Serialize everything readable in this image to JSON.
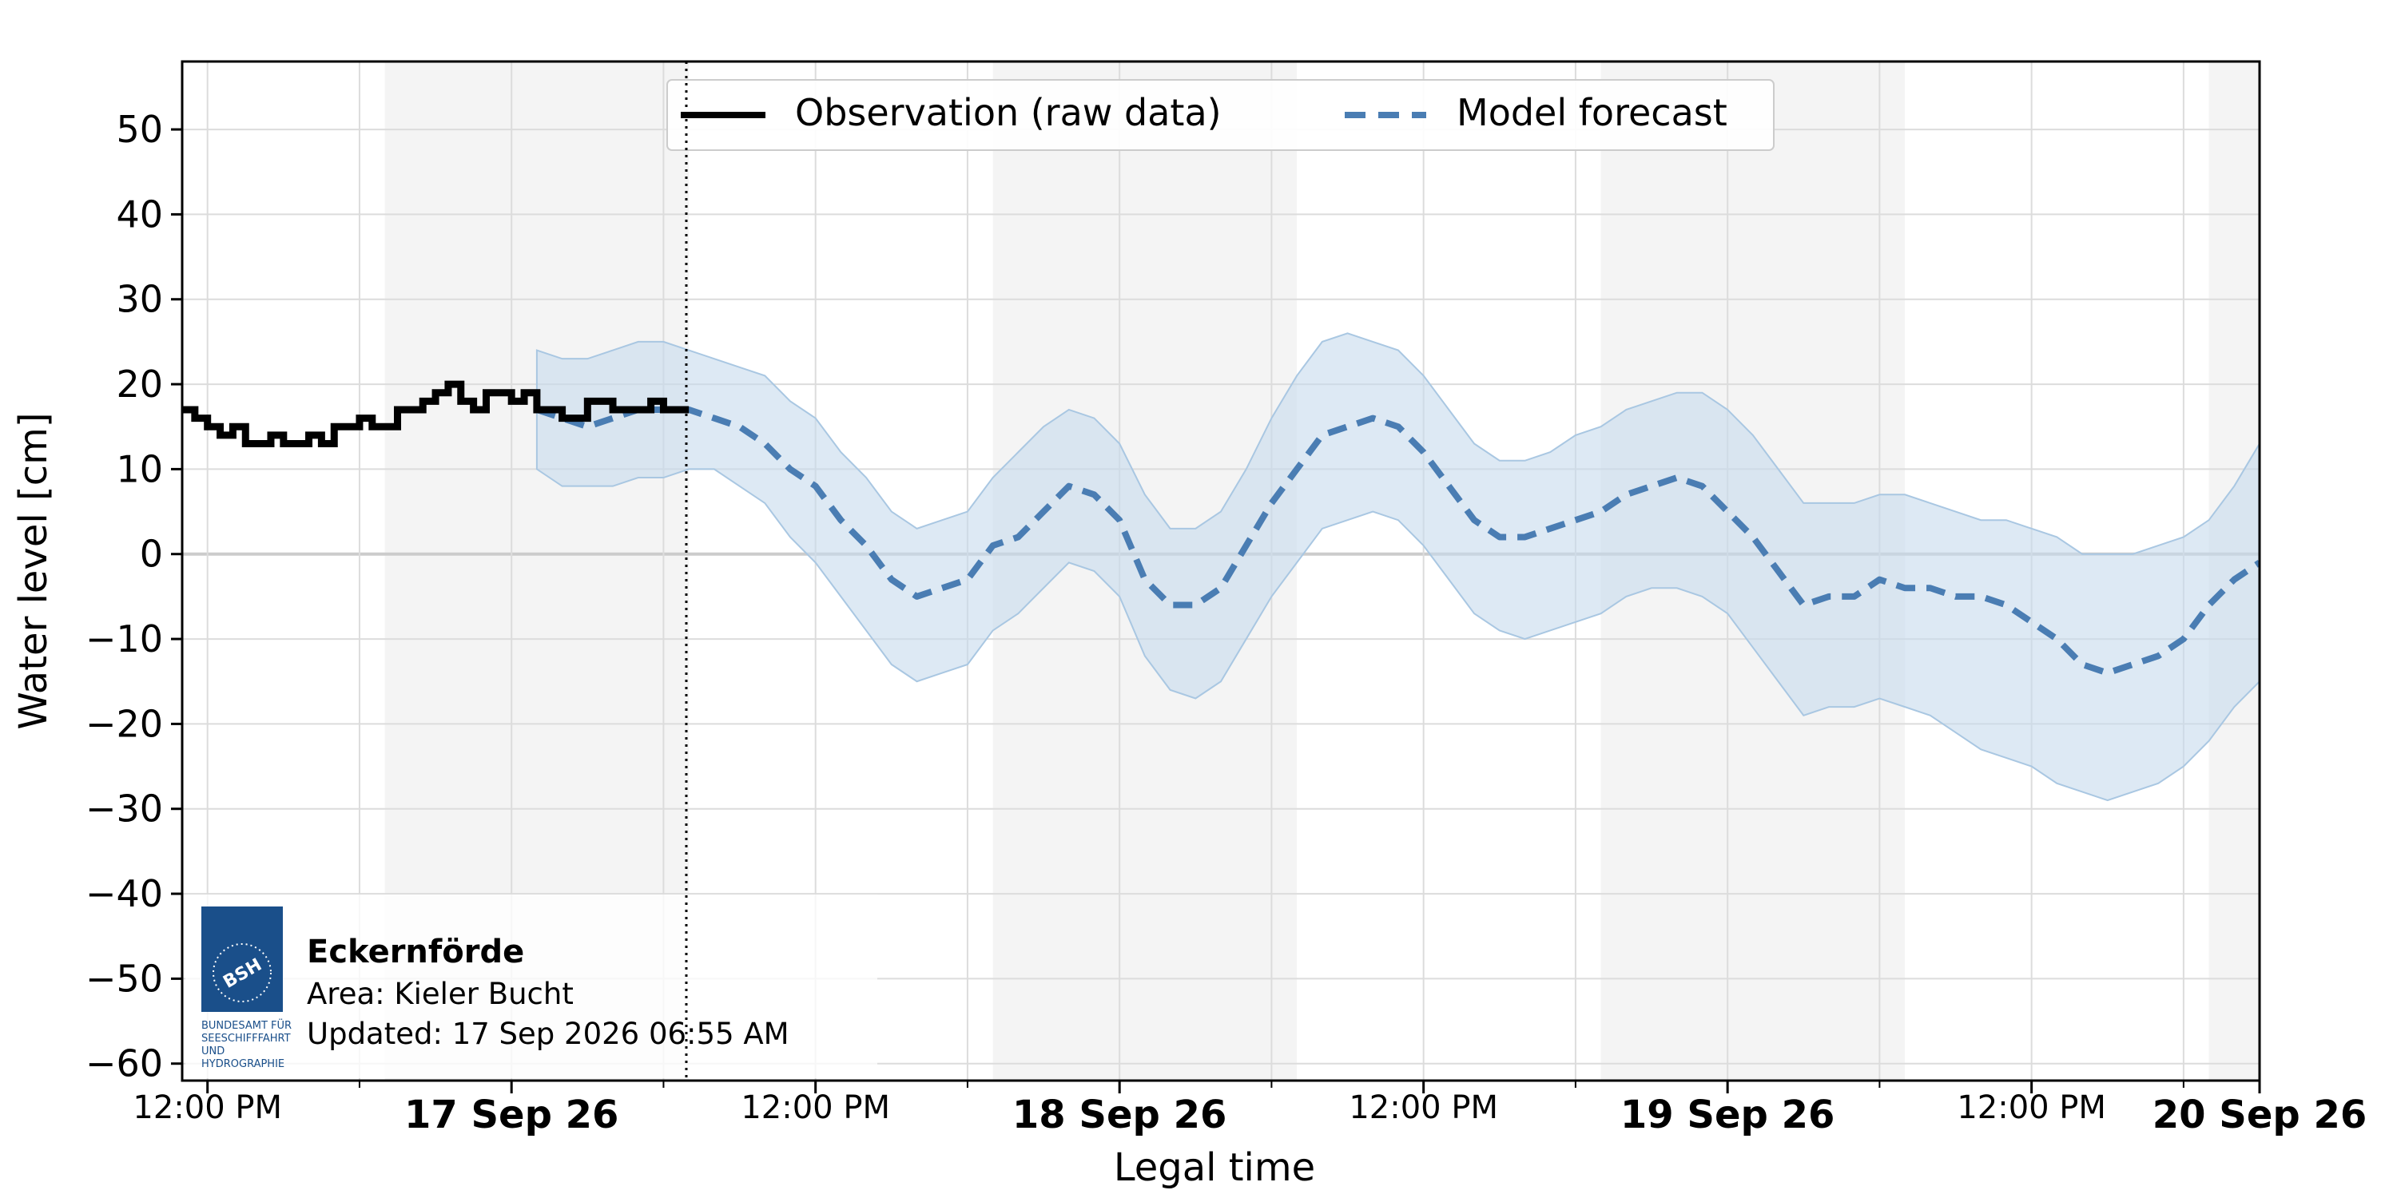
{
  "chart_data": {
    "type": "line",
    "xlabel": "Legal time",
    "ylabel": "Water level [cm]",
    "ylim": [
      -62,
      58
    ],
    "yticks": [
      50,
      40,
      30,
      20,
      10,
      0,
      -10,
      -20,
      -30,
      -40,
      -50,
      -60
    ],
    "x_range_hours": [
      -1,
      81
    ],
    "x_ticks": [
      {
        "h": 0,
        "label": "12:00 PM",
        "bold": false
      },
      {
        "h": 12,
        "label": "17 Sep 26",
        "bold": true
      },
      {
        "h": 24,
        "label": "12:00 PM",
        "bold": false
      },
      {
        "h": 36,
        "label": "18 Sep 26",
        "bold": true
      },
      {
        "h": 48,
        "label": "12:00 PM",
        "bold": false
      },
      {
        "h": 60,
        "label": "19 Sep 26",
        "bold": true
      },
      {
        "h": 72,
        "label": "12:00 PM",
        "bold": false
      },
      {
        "h": 84,
        "label": "20 Sep 26",
        "bold": true
      }
    ],
    "night_bands_hours": [
      [
        7,
        19
      ],
      [
        31,
        43
      ],
      [
        55,
        67
      ],
      [
        79,
        81
      ]
    ],
    "now_hour": 18.9,
    "grid": true,
    "legend_position": "top-center",
    "series": [
      {
        "name": "Observation (raw data)",
        "color": "#000000",
        "style": "step",
        "x": [
          -1,
          -0.5,
          0,
          0.5,
          1,
          1.5,
          2,
          2.5,
          3,
          3.5,
          4,
          4.5,
          5,
          5.5,
          6,
          6.5,
          7,
          7.5,
          8,
          8.5,
          9,
          9.5,
          10,
          10.5,
          11,
          11.5,
          12,
          12.5,
          13,
          13.5,
          14,
          14.5,
          15,
          15.5,
          16,
          16.5,
          17,
          17.5,
          18,
          18.5,
          19
        ],
        "y": [
          17,
          16,
          15,
          14,
          15,
          13,
          13,
          14,
          13,
          13,
          14,
          13,
          15,
          15,
          16,
          15,
          15,
          17,
          17,
          18,
          19,
          20,
          18,
          17,
          19,
          19,
          18,
          19,
          17,
          17,
          16,
          16,
          18,
          18,
          17,
          17,
          17,
          18,
          17,
          17,
          17
        ]
      },
      {
        "name": "Model forecast",
        "color": "#4a7db3",
        "style": "dashed",
        "x": [
          13,
          14,
          15,
          16,
          17,
          18,
          19,
          20,
          21,
          22,
          23,
          24,
          25,
          26,
          27,
          28,
          29,
          30,
          31,
          32,
          33,
          34,
          35,
          36,
          37,
          38,
          39,
          40,
          41,
          42,
          43,
          44,
          45,
          46,
          47,
          48,
          49,
          50,
          51,
          52,
          53,
          54,
          55,
          56,
          57,
          58,
          59,
          60,
          61,
          62,
          63,
          64,
          65,
          66,
          67,
          68,
          69,
          70,
          71,
          72,
          73,
          74,
          75,
          76,
          77,
          78,
          79,
          80,
          81
        ],
        "y": [
          17,
          16,
          15,
          16,
          17,
          17,
          17,
          16,
          15,
          13,
          10,
          8,
          4,
          1,
          -3,
          -5,
          -4,
          -3,
          1,
          2,
          5,
          8,
          7,
          4,
          -3,
          -6,
          -6,
          -4,
          1,
          6,
          10,
          14,
          15,
          16,
          15,
          12,
          8,
          4,
          2,
          2,
          3,
          4,
          5,
          7,
          8,
          9,
          8,
          5,
          2,
          -2,
          -6,
          -5,
          -5,
          -3,
          -4,
          -4,
          -5,
          -5,
          -6,
          -8,
          -10,
          -13,
          -14,
          -13,
          -12,
          -10,
          -6,
          -3,
          -1
        ],
        "band_upper": [
          24,
          23,
          23,
          24,
          25,
          25,
          24,
          23,
          22,
          21,
          18,
          16,
          12,
          9,
          5,
          3,
          4,
          5,
          9,
          12,
          15,
          17,
          16,
          13,
          7,
          3,
          3,
          5,
          10,
          16,
          21,
          25,
          26,
          25,
          24,
          21,
          17,
          13,
          11,
          11,
          12,
          14,
          15,
          17,
          18,
          19,
          19,
          17,
          14,
          10,
          6,
          6,
          6,
          7,
          7,
          6,
          5,
          4,
          4,
          3,
          2,
          0,
          0,
          0,
          1,
          2,
          4,
          8,
          13
        ],
        "band_lower": [
          10,
          8,
          8,
          8,
          9,
          9,
          10,
          10,
          8,
          6,
          2,
          -1,
          -5,
          -9,
          -13,
          -15,
          -14,
          -13,
          -9,
          -7,
          -4,
          -1,
          -2,
          -5,
          -12,
          -16,
          -17,
          -15,
          -10,
          -5,
          -1,
          3,
          4,
          5,
          4,
          1,
          -3,
          -7,
          -9,
          -10,
          -9,
          -8,
          -7,
          -5,
          -4,
          -4,
          -5,
          -7,
          -11,
          -15,
          -19,
          -18,
          -18,
          -17,
          -18,
          -19,
          -21,
          -23,
          -24,
          -25,
          -27,
          -28,
          -29,
          -28,
          -27,
          -25,
          -22,
          -18,
          -15
        ]
      }
    ]
  },
  "legend": {
    "items": [
      {
        "label": "Observation (raw data)",
        "color": "#000000",
        "style": "solid"
      },
      {
        "label": "Model forecast",
        "color": "#4a7db3",
        "style": "dashed"
      }
    ]
  },
  "info_box": {
    "logo": {
      "abbr": "BSH",
      "text_lines": [
        "BUNDESAMT FÜR",
        "SEESCHIFFFAHRT",
        "UND",
        "HYDROGRAPHIE"
      ],
      "color": "#1a4f8a"
    },
    "station": "Eckernförde",
    "area": "Area: Kieler Bucht",
    "updated": "Updated: 17 Sep 2026 06:55 AM"
  },
  "colors": {
    "night_band": "#f4f4f4",
    "grid": "#dcdcdc",
    "band_fill": "#c7dbec",
    "zero_line": "#cccccc"
  }
}
